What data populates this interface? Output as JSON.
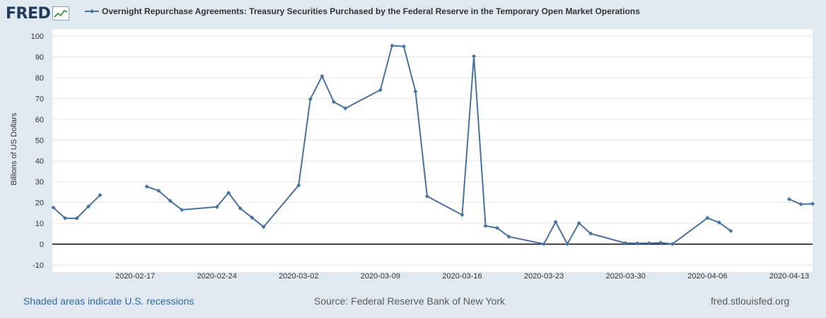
{
  "header": {
    "logo_text": "FRED",
    "legend_label": "Overnight Repurchase Agreements: Treasury Securities Purchased by the Federal Reserve in the Temporary Open Market Operations"
  },
  "footer": {
    "recessions_note": "Shaded areas indicate U.S. recessions",
    "source": "Source: Federal Reserve Bank of New York",
    "site": "fred.stlouisfed.org"
  },
  "colors": {
    "series": "#4572a7",
    "plot_background": "#ffffff",
    "page_background": "#e1e9f0",
    "zero_line": "#000000",
    "grid": "#e6e6e6"
  },
  "chart_data": {
    "type": "line",
    "title": "",
    "xlabel": "",
    "ylabel": "Billions of US Dollars",
    "ylim": [
      -10,
      100
    ],
    "yticks": [
      -10,
      0,
      10,
      20,
      30,
      40,
      50,
      60,
      70,
      80,
      90,
      100
    ],
    "xlim": [
      "2020-02-10",
      "2020-04-15"
    ],
    "xticks": [
      "2020-02-17",
      "2020-02-24",
      "2020-03-02",
      "2020-03-09",
      "2020-03-16",
      "2020-03-23",
      "2020-03-30",
      "2020-04-06",
      "2020-04-13"
    ],
    "grid": true,
    "legend": "top",
    "series": [
      {
        "name": "Overnight Repurchase Agreements: Treasury Securities Purchased by the Federal Reserve in the Temporary Open Market Operations",
        "points": [
          [
            "2020-02-10",
            17.6
          ],
          [
            "2020-02-11",
            12.5
          ],
          [
            "2020-02-12",
            12.4
          ],
          [
            "2020-02-13",
            18.1
          ],
          [
            "2020-02-14",
            23.6
          ],
          [
            "2020-02-17",
            null
          ],
          [
            "2020-02-18",
            27.7
          ],
          [
            "2020-02-19",
            25.7
          ],
          [
            "2020-02-20",
            20.8
          ],
          [
            "2020-02-21",
            16.5
          ],
          [
            "2020-02-24",
            17.9
          ],
          [
            "2020-02-25",
            24.7
          ],
          [
            "2020-02-26",
            17.2
          ],
          [
            "2020-02-27",
            12.8
          ],
          [
            "2020-02-28",
            8.3
          ],
          [
            "2020-03-02",
            28.3
          ],
          [
            "2020-03-03",
            69.7
          ],
          [
            "2020-03-04",
            80.7
          ],
          [
            "2020-03-05",
            68.4
          ],
          [
            "2020-03-06",
            65.3
          ],
          [
            "2020-03-09",
            74.1
          ],
          [
            "2020-03-10",
            95.4
          ],
          [
            "2020-03-11",
            95.0
          ],
          [
            "2020-03-12",
            73.4
          ],
          [
            "2020-03-13",
            23.0
          ],
          [
            "2020-03-16",
            14.1
          ],
          [
            "2020-03-17",
            90.3
          ],
          [
            "2020-03-18",
            8.8
          ],
          [
            "2020-03-19",
            7.8
          ],
          [
            "2020-03-20",
            3.6
          ],
          [
            "2020-03-23",
            0.1
          ],
          [
            "2020-03-24",
            10.7
          ],
          [
            "2020-03-25",
            0.1
          ],
          [
            "2020-03-26",
            10.1
          ],
          [
            "2020-03-27",
            5.1
          ],
          [
            "2020-03-30",
            0.5
          ],
          [
            "2020-03-31",
            0.4
          ],
          [
            "2020-04-01",
            0.5
          ],
          [
            "2020-04-02",
            0.7
          ],
          [
            "2020-04-03",
            0.1
          ],
          [
            "2020-04-06",
            12.6
          ],
          [
            "2020-04-07",
            10.4
          ],
          [
            "2020-04-08",
            6.4
          ],
          [
            "2020-04-09",
            null
          ],
          [
            "2020-04-13",
            21.6
          ],
          [
            "2020-04-14",
            19.2
          ],
          [
            "2020-04-15",
            19.4
          ]
        ]
      }
    ]
  }
}
